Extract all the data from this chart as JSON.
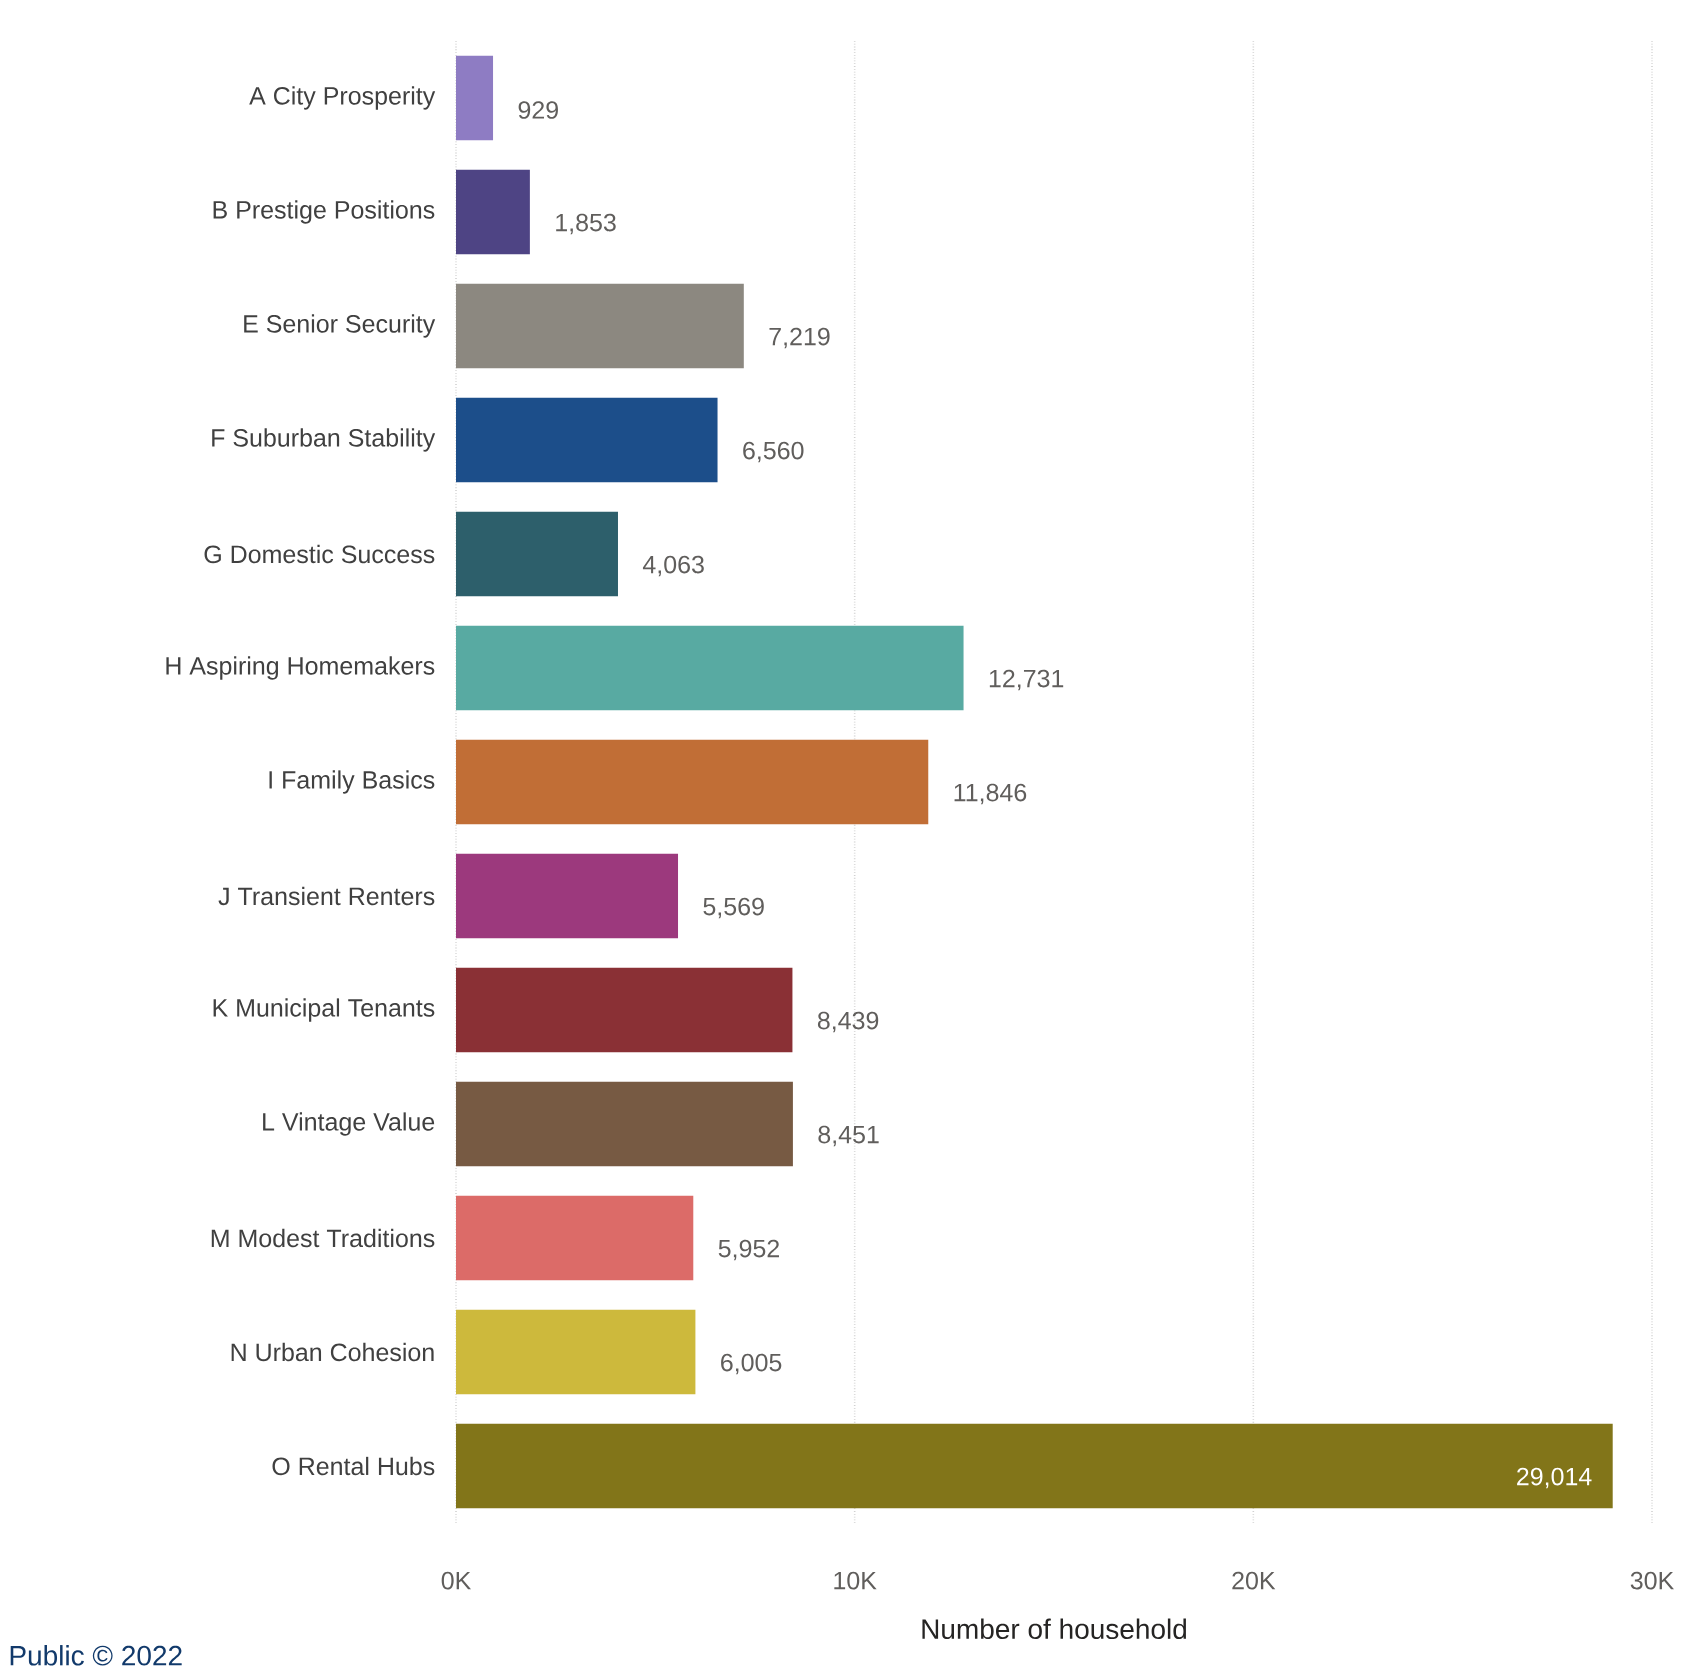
{
  "chart_data": {
    "type": "bar",
    "orientation": "horizontal",
    "xlabel": "Number of household",
    "categories": [
      "A City Prosperity",
      "B Prestige Positions",
      "E Senior Security",
      "F Suburban Stability",
      "G Domestic Success",
      "H Aspiring Homemakers",
      "I Family Basics",
      "J Transient Renters",
      "K Municipal Tenants",
      "L Vintage Value",
      "M Modest Traditions",
      "N Urban Cohesion",
      "O Rental Hubs"
    ],
    "values": [
      929,
      1853,
      7219,
      6560,
      4063,
      12731,
      11846,
      5569,
      8439,
      8451,
      5952,
      6005,
      29014
    ],
    "value_labels": [
      "929",
      "1,853",
      "7,219",
      "6,560",
      "4,063",
      "12,731",
      "11,846",
      "5,569",
      "8,439",
      "8,451",
      "5,952",
      "6,005",
      "29,014"
    ],
    "colors": [
      "#8e7cc3",
      "#4e4484",
      "#8c8880",
      "#1c4e8a",
      "#2d5f6b",
      "#58aaa2",
      "#c16e36",
      "#9c397d",
      "#8a3035",
      "#775a43",
      "#dc6b68",
      "#cdb93c",
      "#827519"
    ],
    "xlim": [
      0,
      30000
    ],
    "xticks": [
      {
        "value": 0,
        "label": "0K"
      },
      {
        "value": 10000,
        "label": "10K"
      },
      {
        "value": 20000,
        "label": "20K"
      },
      {
        "value": 30000,
        "label": "30K"
      }
    ],
    "grid": "x",
    "annotations": [
      "Public © 2022"
    ]
  }
}
